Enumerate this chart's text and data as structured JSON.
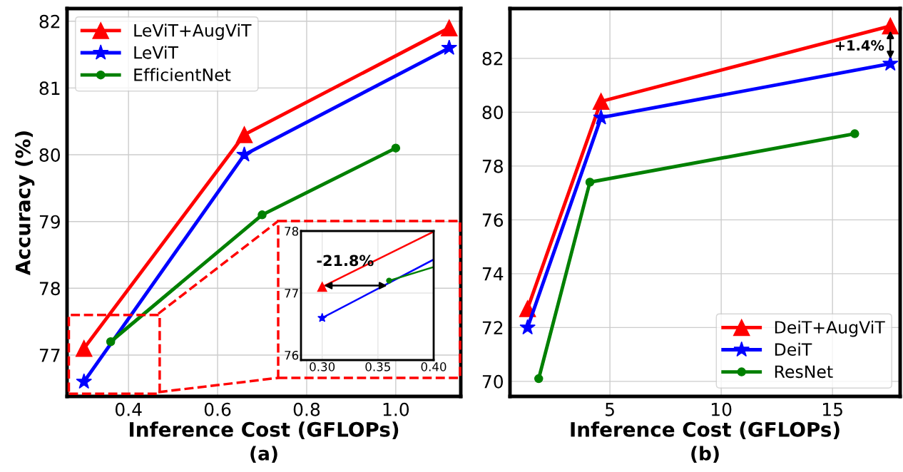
{
  "chart_data": [
    {
      "type": "line",
      "xlabel": "Inference Cost (GFLOPs)",
      "ylabel": "Accuracy (%)",
      "annotations": [
        "(a)"
      ],
      "xlim": [
        0.262,
        1.146
      ],
      "ylim": [
        76.38,
        82.19
      ],
      "xticks": [
        {
          "value": 0.4,
          "label": "0.4"
        },
        {
          "value": 0.6,
          "label": "0.6"
        },
        {
          "value": 0.8,
          "label": "0.8"
        },
        {
          "value": 1.0,
          "label": "1.0"
        }
      ],
      "yticks": [
        77,
        78,
        79,
        80,
        81,
        82
      ],
      "grid": true,
      "legend": "top left",
      "series": [
        {
          "name": "LeViT+AugViT",
          "color": "#ff0000",
          "marker": "triangle",
          "x": [
            0.3,
            0.66,
            1.12
          ],
          "values": [
            77.1,
            80.3,
            81.9
          ]
        },
        {
          "name": "LeViT",
          "color": "#0000ff",
          "marker": "star",
          "x": [
            0.3,
            0.66,
            1.12
          ],
          "values": [
            76.6,
            80.0,
            81.6
          ]
        },
        {
          "name": "EfficientNet",
          "color": "#008000",
          "marker": "circle",
          "x": [
            0.36,
            0.7,
            1.0
          ],
          "values": [
            77.2,
            79.1,
            80.1
          ]
        }
      ]
    },
    {
      "type": "line",
      "annotations": [
        "-21.8%"
      ],
      "xlim": [
        0.281,
        0.4
      ],
      "ylim": [
        75.92,
        78.0
      ],
      "xticks": [
        {
          "value": 0.3,
          "label": "0.30"
        },
        {
          "value": 0.35,
          "label": "0.35"
        },
        {
          "value": 0.4,
          "label": "0.40"
        }
      ],
      "yticks": [
        76,
        77,
        78
      ],
      "grid": true,
      "series": [
        {
          "color": "#ff0000",
          "marker": "triangle",
          "x": [
            0.3,
            0.4
          ],
          "values": [
            77.1,
            77.99
          ]
        },
        {
          "color": "#0000ff",
          "marker": "star",
          "x": [
            0.3,
            0.4
          ],
          "values": [
            76.6,
            77.54
          ]
        },
        {
          "color": "#008000",
          "marker": "circle",
          "x": [
            0.36,
            0.4
          ],
          "values": [
            77.2,
            77.42
          ]
        }
      ]
    },
    {
      "type": "line",
      "xlabel": "Inference Cost (GFLOPs)",
      "annotations": [
        "(b)",
        "+1.4%"
      ],
      "xlim": [
        0.51,
        18.04
      ],
      "ylim": [
        69.44,
        83.85
      ],
      "xticks": [
        5,
        10,
        15
      ],
      "yticks": [
        70,
        72,
        74,
        76,
        78,
        80,
        82
      ],
      "grid": true,
      "legend": "bottom right",
      "series": [
        {
          "name": "DeiT+AugViT",
          "color": "#ff0000",
          "marker": "triangle",
          "x": [
            1.3,
            4.6,
            17.6
          ],
          "values": [
            72.7,
            80.4,
            83.2
          ]
        },
        {
          "name": "DeiT",
          "color": "#0000ff",
          "marker": "star",
          "x": [
            1.3,
            4.6,
            17.6
          ],
          "values": [
            72.0,
            79.8,
            81.8
          ]
        },
        {
          "name": "ResNet",
          "color": "#008000",
          "marker": "circle",
          "x": [
            1.8,
            4.1,
            16.0
          ],
          "values": [
            70.1,
            77.4,
            79.2
          ]
        }
      ]
    }
  ]
}
